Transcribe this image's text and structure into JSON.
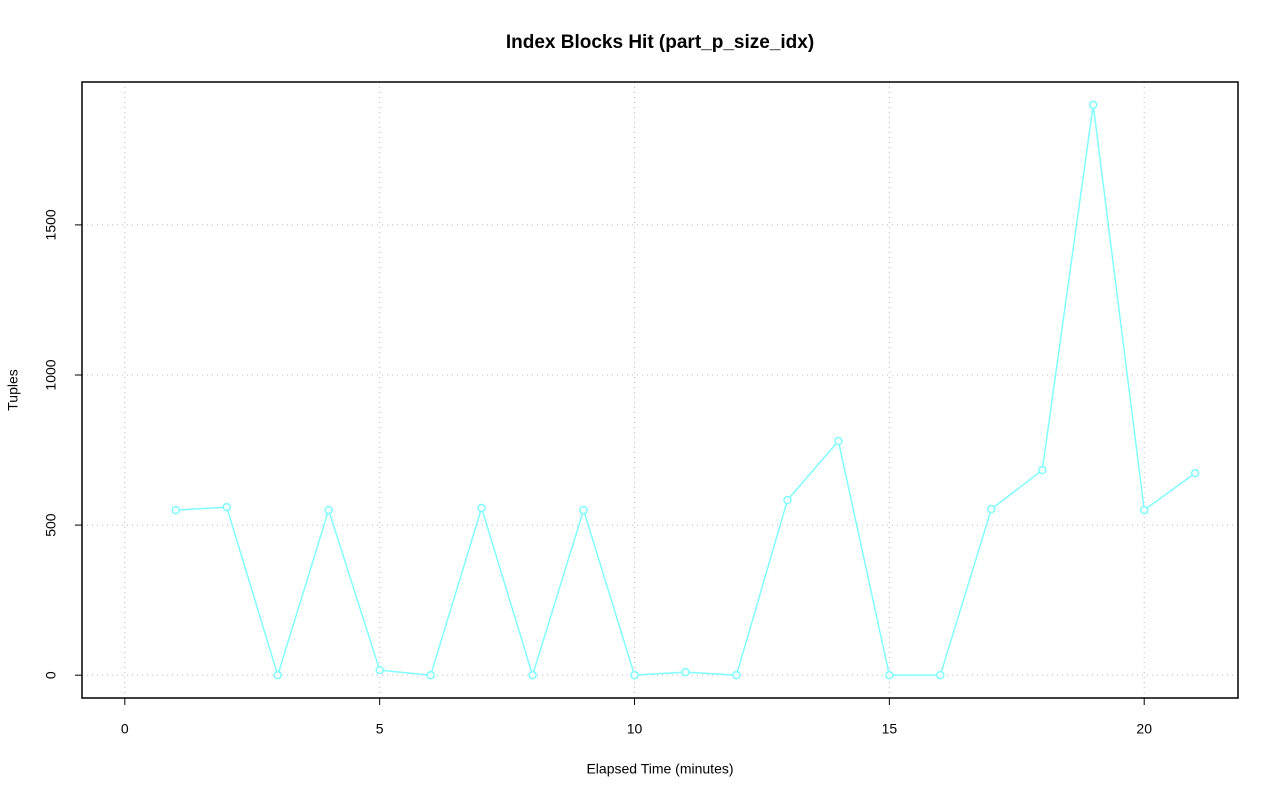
{
  "chart_data": {
    "type": "line",
    "title": "Index Blocks Hit (part_p_size_idx)",
    "x_label": "Elapsed Time (minutes)",
    "y_label": "Tuples",
    "x": [
      1,
      2,
      3,
      4,
      5,
      6,
      7,
      8,
      9,
      10,
      11,
      12,
      13,
      14,
      15,
      16,
      17,
      18,
      19,
      20,
      21
    ],
    "series": [
      {
        "color": "#80ffff",
        "values": [
          550,
          560,
          0,
          550,
          17,
          0,
          557,
          0,
          550,
          0,
          10,
          0,
          583,
          780,
          0,
          0,
          553,
          683,
          1900,
          550,
          673
        ]
      }
    ],
    "xlim": [
      -0.84,
      21.84
    ],
    "xticks": [
      0,
      5,
      10,
      15,
      20
    ],
    "ylim": [
      -76,
      1976
    ],
    "yticks": [
      0,
      500,
      1000,
      1500
    ],
    "grid": true
  }
}
